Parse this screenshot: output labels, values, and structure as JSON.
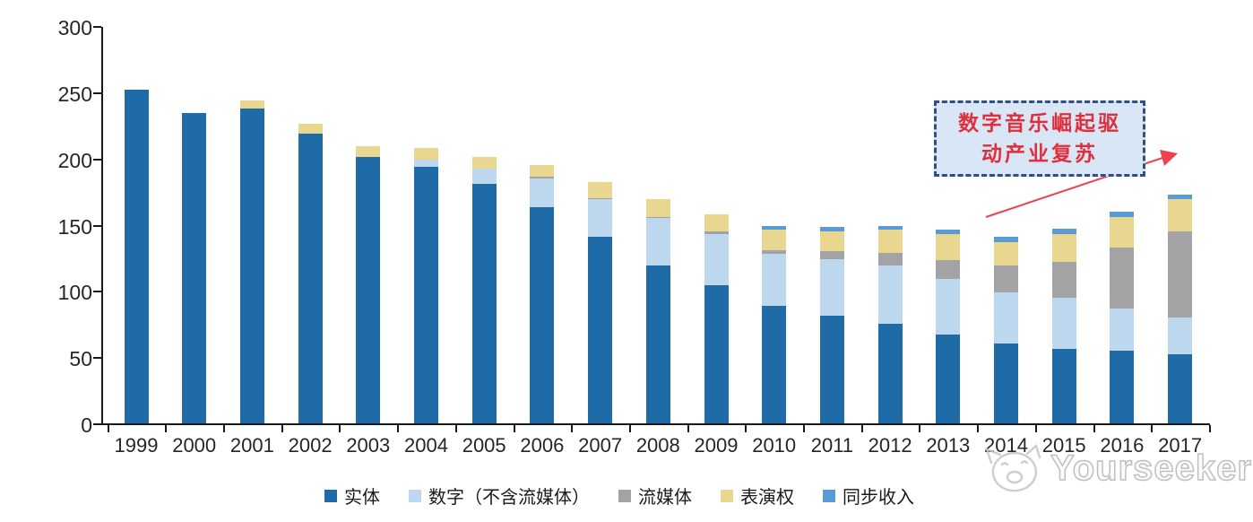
{
  "chart_data": {
    "type": "bar",
    "stacked": true,
    "title": "",
    "xlabel": "",
    "ylabel": "",
    "categories": [
      "1999",
      "2000",
      "2001",
      "2002",
      "2003",
      "2004",
      "2005",
      "2006",
      "2007",
      "2008",
      "2009",
      "2010",
      "2011",
      "2012",
      "2013",
      "2014",
      "2015",
      "2016",
      "2017"
    ],
    "series": [
      {
        "name": "实体",
        "color": "#1f6ba8",
        "values": [
          252,
          234,
          238,
          219,
          201,
          194,
          181,
          163,
          141,
          119,
          104,
          89,
          81,
          75,
          67,
          60,
          56,
          55,
          52
        ]
      },
      {
        "name": "数字（不含流媒体）",
        "color": "#bdd7ee",
        "values": [
          0,
          0,
          0,
          0,
          0,
          5,
          11,
          22,
          28,
          36,
          39,
          39,
          43,
          44,
          42,
          39,
          39,
          32,
          28
        ]
      },
      {
        "name": "流媒体",
        "color": "#a3a3a6",
        "values": [
          0,
          0,
          0,
          0,
          0,
          0,
          0,
          1,
          1,
          1,
          2,
          3,
          6,
          10,
          14,
          20,
          27,
          46,
          65
        ]
      },
      {
        "name": "表演权",
        "color": "#e9d78f",
        "values": [
          0,
          0,
          6,
          7,
          8,
          9,
          9,
          9,
          12,
          13,
          13,
          15,
          15,
          17,
          20,
          18,
          21,
          23,
          24
        ]
      },
      {
        "name": "同步收入",
        "color": "#5b9bd5",
        "values": [
          0,
          0,
          0,
          0,
          0,
          0,
          0,
          0,
          0,
          0,
          0,
          3,
          3,
          3,
          3,
          4,
          4,
          4,
          4
        ]
      }
    ],
    "ylim": [
      0,
      300
    ],
    "yticks": [
      0,
      50,
      100,
      150,
      200,
      250,
      300
    ],
    "grid": false,
    "legend_position": "bottom"
  },
  "annotation": {
    "line1": "数字音乐崛起驱",
    "line2": "动产业复苏",
    "box_fill": "#d9e6f5",
    "box_border": "#31507d",
    "text_color": "#e02f3c",
    "arrow_color": "#ef4050"
  },
  "watermark": {
    "text": "Yourseeker"
  },
  "colors": {
    "axis": "#1a1a1a",
    "tick_label": "#262626"
  }
}
